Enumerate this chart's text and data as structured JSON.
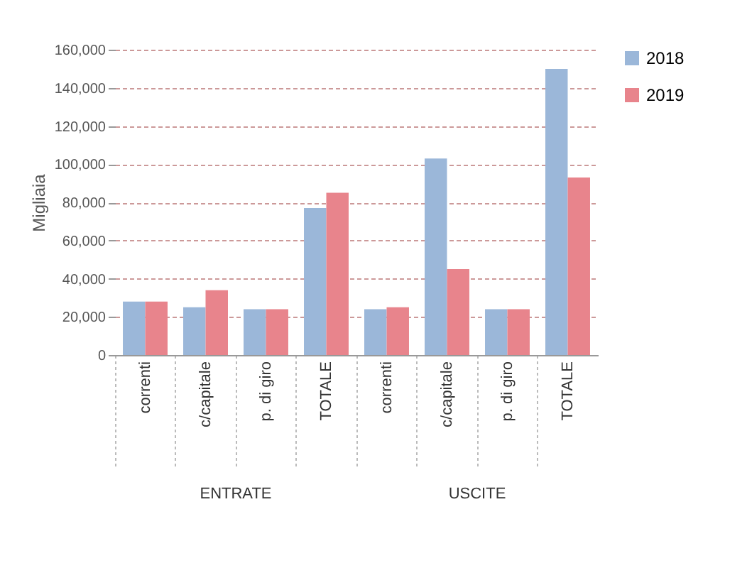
{
  "chart_data": {
    "type": "bar",
    "ylabel": "Migliaia",
    "categories": [
      "correnti",
      "c/capitale",
      "p. di giro",
      "TOTALE",
      "correnti",
      "c/capitale",
      "p. di giro",
      "TOTALE"
    ],
    "series": [
      {
        "name": "2018",
        "color": "#9bb7d9",
        "values": [
          28000,
          25000,
          24000,
          77000,
          24000,
          103000,
          24000,
          150000
        ]
      },
      {
        "name": "2019",
        "color": "#e8848c",
        "values": [
          28000,
          34000,
          24000,
          85000,
          25000,
          45000,
          24000,
          93000
        ]
      }
    ],
    "ylim": [
      0,
      160000
    ],
    "yticks": [
      0,
      {
        "value": 20000,
        "label": "20,000"
      },
      {
        "value": 40000,
        "label": "40,000"
      },
      {
        "value": 60000,
        "label": "60,000"
      },
      {
        "value": 80000,
        "label": "80,000"
      },
      {
        "value": 100000,
        "label": "100,000"
      },
      {
        "value": 120000,
        "label": "120,000"
      },
      {
        "value": 140000,
        "label": "140,000"
      },
      {
        "value": 160000,
        "label": "160,000"
      }
    ],
    "annotations": [
      "ENTRATE",
      "USCITE"
    ],
    "grid": "y",
    "legend": "right"
  }
}
